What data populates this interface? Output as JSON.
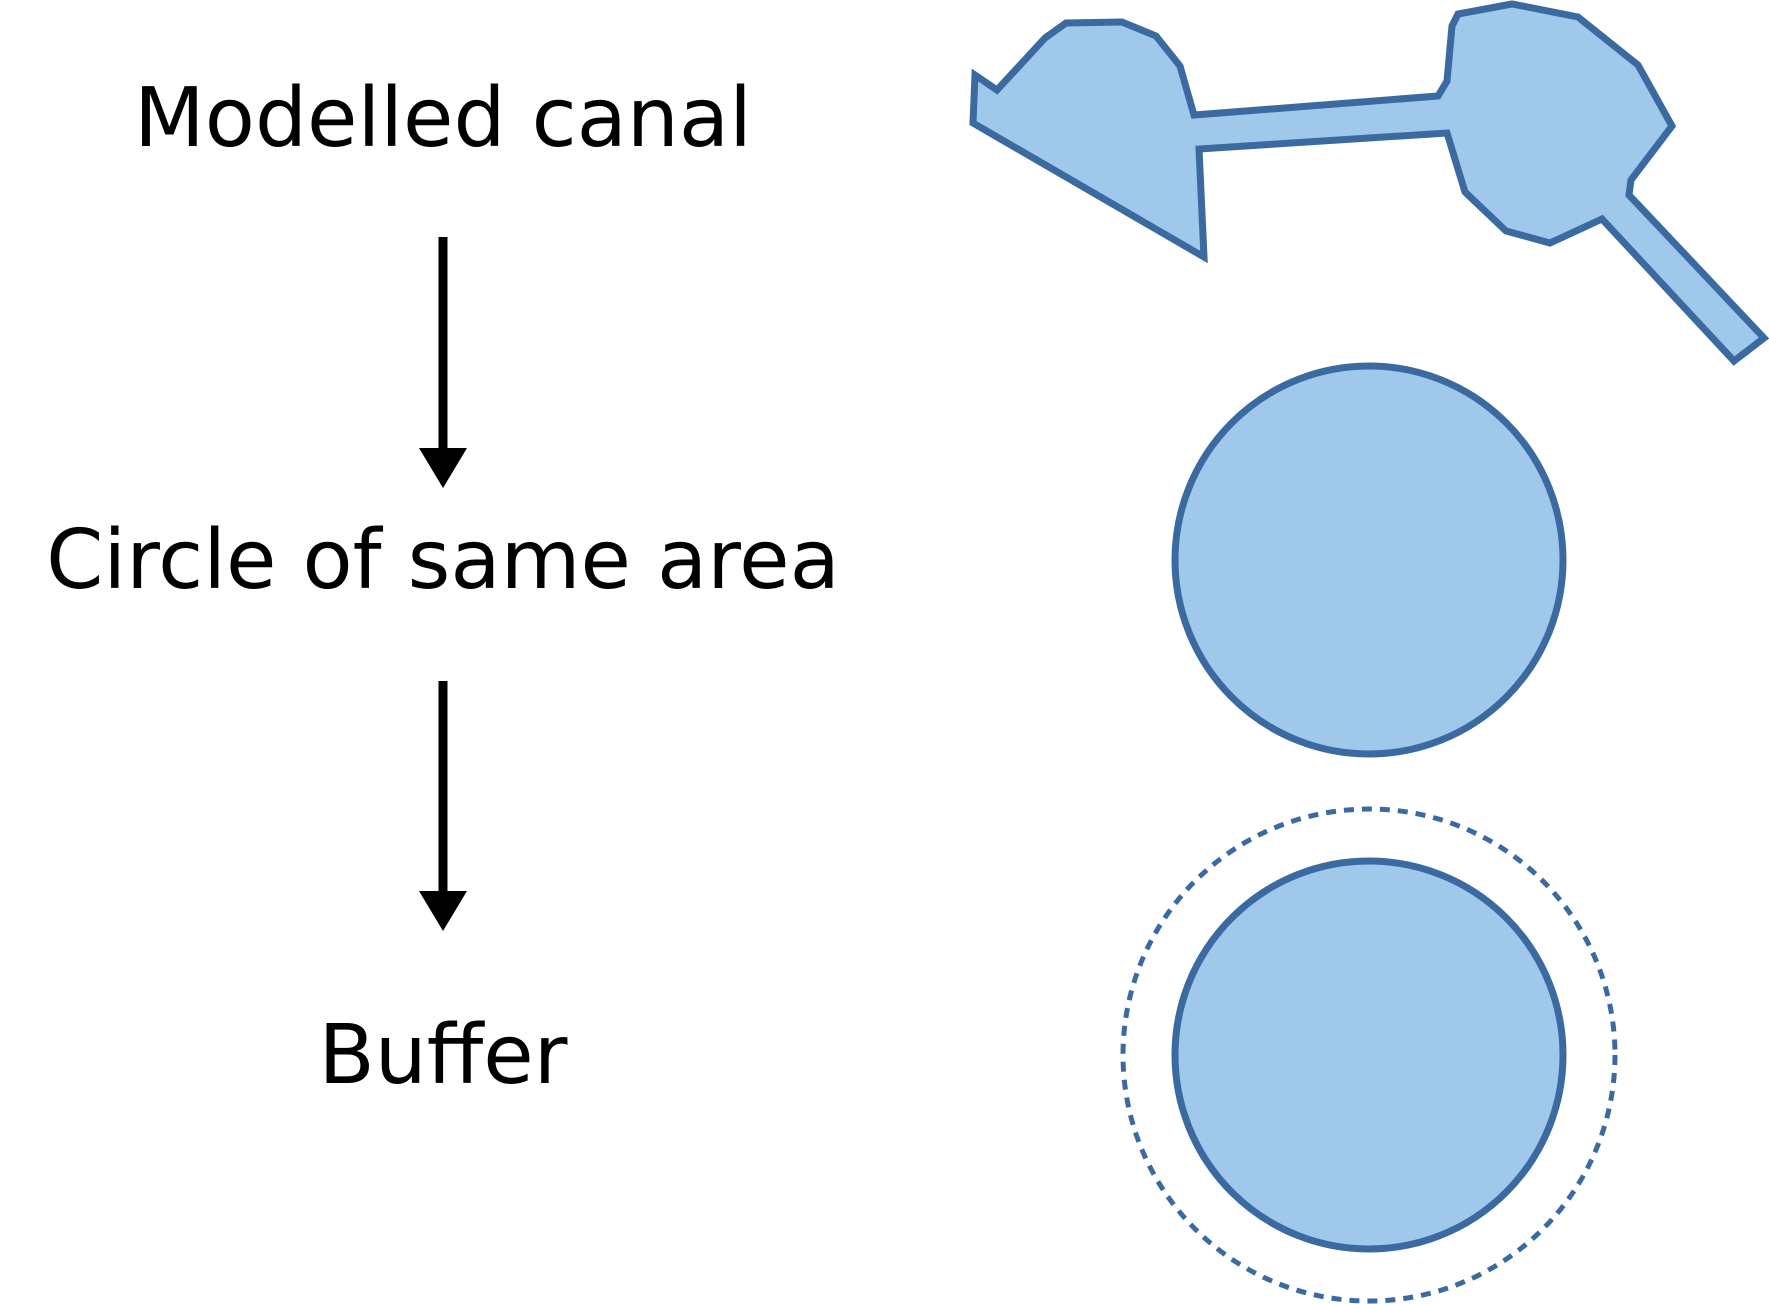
{
  "steps": [
    {
      "label": "Modelled canal"
    },
    {
      "label": "Circle of same area"
    },
    {
      "label": "Buffer"
    }
  ],
  "colors": {
    "shape_fill": "#a0c8eb",
    "shape_stroke": "#3a6aa0",
    "arrow": "#000000",
    "text": "#000000"
  }
}
